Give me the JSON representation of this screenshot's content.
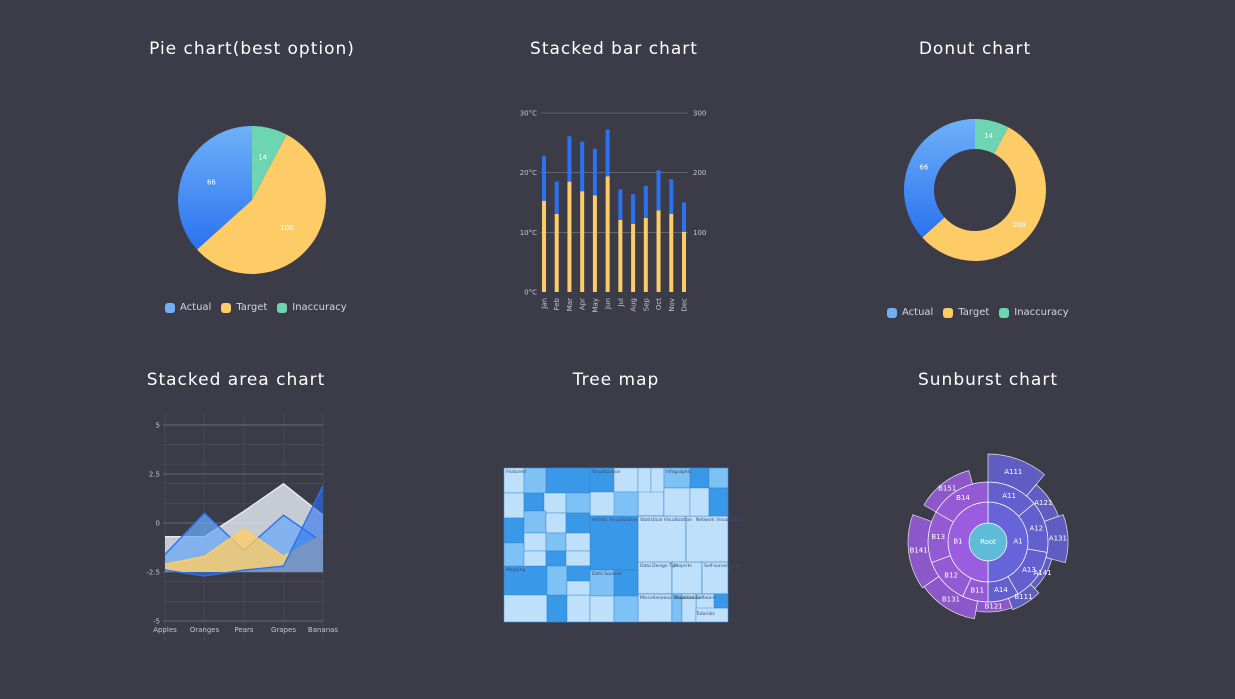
{
  "colors": {
    "actual": "#4f9dfa",
    "target": "#fecc67",
    "inaccuracy": "#6dd5b1",
    "bar_blue": "#2b72f0",
    "bar_yellow": "#fecc67",
    "treemap_dark": "#3a98e8",
    "treemap_light": "#bfe0fb",
    "sunburst_purple": "#9b5de0",
    "sunburst_blue": "#6763d8"
  },
  "titles": {
    "pie": "Pie chart(best option)",
    "bar": "Stacked bar chart",
    "donut": "Donut chart",
    "area": "Stacked area chart",
    "treemap": "Tree map",
    "sunburst": "Sunburst chart"
  },
  "legend": {
    "actual": "Actual",
    "target": "Target",
    "inaccuracy": "Inaccuracy"
  },
  "chart_data": [
    {
      "type": "pie",
      "title": "Pie chart(best option)",
      "categories": [
        "Actual",
        "Target",
        "Inaccuracy"
      ],
      "values": [
        66,
        100,
        14
      ],
      "legend": "bottom"
    },
    {
      "type": "bar",
      "title": "Stacked bar chart",
      "categories": [
        "Jan",
        "Feb",
        "Mar",
        "Apr",
        "May",
        "Jun",
        "Jul",
        "Aug",
        "Sep",
        "Oct",
        "Nov",
        "Dec"
      ],
      "series": [
        {
          "values": [
            15.3,
            13.1,
            18.5,
            16.9,
            16.2,
            19.4,
            12.1,
            11.4,
            12.4,
            13.7,
            13.1,
            10.1
          ]
        },
        {
          "values": [
            7.5,
            5.4,
            7.6,
            8.3,
            7.8,
            7.8,
            5.1,
            5.0,
            5.4,
            6.7,
            5.8,
            4.9
          ]
        }
      ],
      "y_left_ticks": [
        "0°C",
        "10°C",
        "20°C",
        "30°C"
      ],
      "y_right_ticks": [
        "100",
        "200",
        "300"
      ],
      "ylim": [
        0,
        30
      ]
    },
    {
      "type": "pie",
      "title": "Donut chart",
      "categories": [
        "Actual",
        "Target",
        "Inaccuracy"
      ],
      "values": [
        66,
        100,
        14
      ],
      "legend": "bottom"
    },
    {
      "type": "area",
      "title": "Stacked area chart",
      "categories": [
        "Apples",
        "Oranges",
        "Pears",
        "Grapes",
        "Bananas"
      ],
      "series": [
        {
          "values": [
            -0.7,
            -0.7,
            0.6,
            2.0,
            0.4
          ]
        },
        {
          "values": [
            -1.6,
            0.5,
            -1.4,
            0.4,
            -1.0
          ]
        },
        {
          "values": [
            -2.1,
            -1.7,
            -0.3,
            -1.7,
            -0.6
          ]
        },
        {
          "values": [
            -2.4,
            -2.7,
            -2.4,
            -2.2,
            1.9
          ]
        }
      ],
      "y_ticks": [
        "5",
        "2.5",
        "0",
        "-2.5",
        "-5"
      ],
      "ylim": [
        -5,
        5
      ],
      "grid": true
    },
    {
      "type": "treemap",
      "title": "Tree map",
      "labels": [
        "Featured",
        "Visualization",
        "Infographic",
        "Artistic Visualization",
        "Statistical Visualization",
        "Network Visualization",
        "Mapping",
        "Data Sources",
        "Data Design Tips",
        "Projects",
        "Self-surveillance",
        "Miscellaneous Visualization",
        "Statistics",
        "Software",
        "Tutorials"
      ]
    },
    {
      "type": "sunburst",
      "title": "Sunburst chart",
      "root": "Root",
      "inner": [
        "A1",
        "B1"
      ],
      "middle": [
        "A11",
        "A12",
        "A13",
        "A14",
        "B11",
        "B12",
        "B13",
        "B14"
      ],
      "outer": [
        "A111",
        "A121",
        "A131",
        "A141",
        "B111",
        "B121",
        "B131",
        "B141",
        "B151"
      ]
    }
  ]
}
